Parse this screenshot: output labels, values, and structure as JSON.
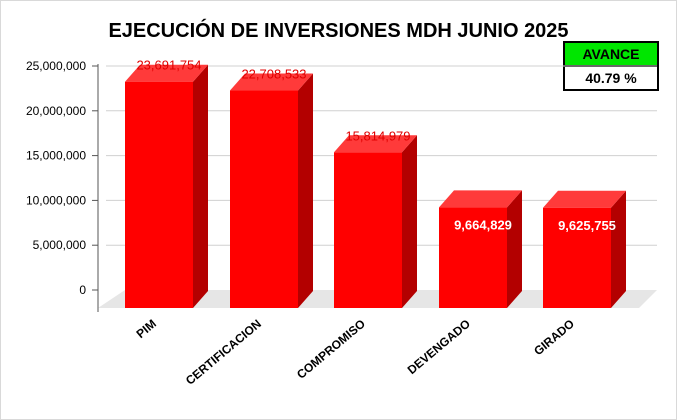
{
  "chart_data": {
    "type": "bar",
    "title": "EJECUCIÓN DE INVERSIONES MDH JUNIO 2025",
    "categories": [
      "PIM",
      "CERTIFICACION",
      "COMPROMISO",
      "DEVENGADO",
      "GIRADO"
    ],
    "values": [
      23691754,
      22708533,
      15814979,
      9664829,
      9625755
    ],
    "data_labels": [
      "23,691,754",
      "22,708,533",
      "15,814,979",
      "9,664,829",
      "9,625,755"
    ],
    "y_ticks": [
      "0",
      "5,000,000",
      "10,000,000",
      "15,000,000",
      "20,000,000",
      "25,000,000"
    ],
    "y_tick_values": [
      0,
      5000000,
      10000000,
      15000000,
      20000000,
      25000000
    ],
    "ylim": [
      0,
      25000000
    ],
    "xlabel": "",
    "ylabel": "",
    "grid": true,
    "bar_color": "#ff0000",
    "bar_side_color": "#b30000",
    "bar_top_color": "#ff3a3a",
    "label_color_outside": "#e00000",
    "label_color_inside": "#ffffff"
  },
  "badge": {
    "label": "AVANCE",
    "value": "40.79 %",
    "label_bg": "#00e600"
  }
}
